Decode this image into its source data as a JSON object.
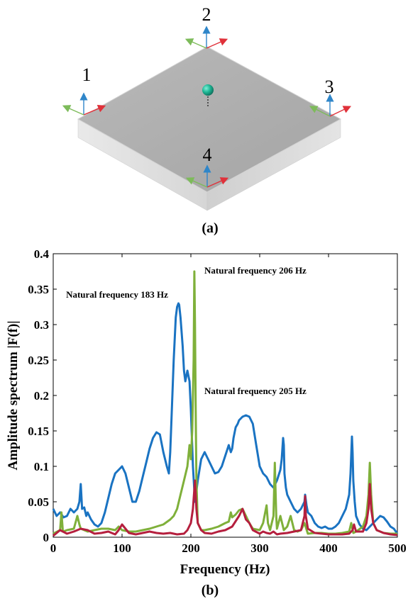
{
  "figure": {
    "panel_a_label": "(a)",
    "panel_b_label": "(b)",
    "sensor_labels": [
      "1",
      "2",
      "3",
      "4"
    ]
  },
  "chart_data": {
    "type": "line",
    "xlabel": "Frequency (Hz)",
    "ylabel": "Amplitude spectrum |F(f)|",
    "xlim": [
      0,
      500
    ],
    "ylim": [
      0,
      0.4
    ],
    "xticks": [
      0,
      100,
      200,
      300,
      400,
      500
    ],
    "yticks": [
      0,
      0.05,
      0.1,
      0.15,
      0.2,
      0.25,
      0.3,
      0.35,
      0.4
    ],
    "ytick_labels": [
      "0",
      "0.05",
      "0.1",
      "0.15",
      "0.2",
      "0.25",
      "0.3",
      "0.35",
      "0.4"
    ],
    "grid": false,
    "annotations": [
      {
        "text": "Natural frequency 183 Hz",
        "x": 183,
        "y": 0.33
      },
      {
        "text": "Natural frequency 206 Hz",
        "x": 206,
        "y": 0.375
      },
      {
        "text": "Natural frequency 205 Hz",
        "x": 205,
        "y": 0.205
      }
    ],
    "series": [
      {
        "color": "#1a73c2",
        "x": [
          0,
          5,
          10,
          15,
          20,
          25,
          30,
          35,
          38,
          40,
          42,
          45,
          48,
          50,
          55,
          60,
          65,
          70,
          75,
          80,
          85,
          90,
          95,
          100,
          105,
          110,
          115,
          120,
          125,
          130,
          135,
          140,
          145,
          150,
          155,
          160,
          165,
          168,
          170,
          172,
          175,
          178,
          180,
          182,
          183,
          185,
          188,
          190,
          192,
          195,
          198,
          200,
          203,
          206,
          210,
          215,
          220,
          225,
          230,
          235,
          240,
          245,
          250,
          255,
          258,
          260,
          262,
          265,
          268,
          270,
          275,
          280,
          285,
          290,
          295,
          300,
          305,
          310,
          315,
          320,
          325,
          330,
          332,
          334,
          335,
          336,
          338,
          340,
          345,
          350,
          355,
          360,
          365,
          366,
          368,
          370,
          375,
          380,
          385,
          390,
          395,
          400,
          405,
          410,
          415,
          420,
          425,
          430,
          432,
          434,
          435,
          436,
          438,
          440,
          445,
          450,
          455,
          460,
          465,
          470,
          475,
          480,
          485,
          490,
          495,
          500
        ],
        "y": [
          0.04,
          0.03,
          0.035,
          0.028,
          0.03,
          0.04,
          0.035,
          0.04,
          0.05,
          0.075,
          0.04,
          0.042,
          0.03,
          0.035,
          0.025,
          0.018,
          0.015,
          0.02,
          0.035,
          0.055,
          0.075,
          0.09,
          0.095,
          0.1,
          0.09,
          0.07,
          0.05,
          0.05,
          0.065,
          0.085,
          0.105,
          0.125,
          0.14,
          0.148,
          0.145,
          0.12,
          0.1,
          0.09,
          0.12,
          0.17,
          0.25,
          0.31,
          0.325,
          0.33,
          0.328,
          0.31,
          0.27,
          0.235,
          0.22,
          0.235,
          0.22,
          0.18,
          0.1,
          0.05,
          0.08,
          0.11,
          0.12,
          0.11,
          0.1,
          0.09,
          0.092,
          0.1,
          0.115,
          0.13,
          0.12,
          0.125,
          0.14,
          0.155,
          0.16,
          0.165,
          0.17,
          0.172,
          0.17,
          0.16,
          0.13,
          0.1,
          0.09,
          0.085,
          0.075,
          0.07,
          0.08,
          0.095,
          0.11,
          0.14,
          0.13,
          0.09,
          0.07,
          0.06,
          0.05,
          0.04,
          0.035,
          0.04,
          0.05,
          0.06,
          0.045,
          0.035,
          0.03,
          0.02,
          0.015,
          0.013,
          0.015,
          0.012,
          0.012,
          0.015,
          0.02,
          0.03,
          0.04,
          0.06,
          0.09,
          0.142,
          0.12,
          0.08,
          0.05,
          0.03,
          0.018,
          0.012,
          0.01,
          0.015,
          0.02,
          0.025,
          0.03,
          0.028,
          0.022,
          0.015,
          0.012,
          0.005
        ]
      },
      {
        "color": "#b51f3e",
        "x": [
          0,
          10,
          20,
          30,
          40,
          50,
          60,
          70,
          80,
          90,
          95,
          100,
          110,
          120,
          125,
          130,
          140,
          150,
          160,
          170,
          180,
          190,
          195,
          200,
          203,
          206,
          208,
          210,
          215,
          220,
          230,
          240,
          250,
          260,
          270,
          275,
          280,
          285,
          290,
          300,
          305,
          310,
          315,
          320,
          325,
          330,
          340,
          350,
          360,
          365,
          366,
          367,
          370,
          380,
          390,
          400,
          410,
          420,
          430,
          435,
          437,
          440,
          450,
          455,
          458,
          460,
          462,
          465,
          470,
          480,
          490,
          500
        ],
        "y": [
          0.002,
          0.01,
          0.005,
          0.008,
          0.012,
          0.01,
          0.005,
          0.006,
          0.008,
          0.004,
          0.01,
          0.018,
          0.006,
          0.004,
          0.005,
          0.006,
          0.008,
          0.006,
          0.005,
          0.006,
          0.004,
          0.005,
          0.01,
          0.02,
          0.04,
          0.08,
          0.04,
          0.02,
          0.01,
          0.006,
          0.005,
          0.008,
          0.01,
          0.015,
          0.03,
          0.04,
          0.025,
          0.02,
          0.01,
          0.005,
          0.008,
          0.006,
          0.005,
          0.008,
          0.004,
          0.005,
          0.006,
          0.008,
          0.01,
          0.03,
          0.058,
          0.03,
          0.012,
          0.006,
          0.005,
          0.004,
          0.004,
          0.004,
          0.005,
          0.01,
          0.018,
          0.008,
          0.008,
          0.02,
          0.04,
          0.075,
          0.04,
          0.02,
          0.01,
          0.006,
          0.004,
          0.003
        ]
      },
      {
        "color": "#7fb03a",
        "x": [
          0,
          10,
          12,
          14,
          20,
          30,
          35,
          38,
          40,
          45,
          50,
          60,
          70,
          80,
          90,
          95,
          100,
          110,
          120,
          130,
          140,
          150,
          160,
          170,
          175,
          180,
          185,
          190,
          195,
          198,
          200,
          202,
          204,
          205,
          206,
          207,
          208,
          210,
          215,
          220,
          230,
          240,
          250,
          255,
          258,
          260,
          265,
          270,
          275,
          280,
          285,
          290,
          300,
          305,
          310,
          312,
          315,
          320,
          322,
          324,
          325,
          330,
          335,
          340,
          345,
          350,
          355,
          360,
          365,
          370,
          380,
          390,
          400,
          410,
          420,
          430,
          433,
          436,
          440,
          450,
          455,
          458,
          460,
          462,
          465,
          470,
          480,
          490,
          500
        ],
        "y": [
          0.005,
          0.01,
          0.035,
          0.008,
          0.01,
          0.012,
          0.03,
          0.018,
          0.012,
          0.01,
          0.008,
          0.01,
          0.012,
          0.012,
          0.01,
          0.015,
          0.01,
          0.008,
          0.008,
          0.01,
          0.012,
          0.015,
          0.018,
          0.025,
          0.03,
          0.04,
          0.06,
          0.08,
          0.1,
          0.13,
          0.11,
          0.15,
          0.25,
          0.375,
          0.3,
          0.18,
          0.08,
          0.02,
          0.01,
          0.01,
          0.012,
          0.015,
          0.02,
          0.022,
          0.035,
          0.028,
          0.032,
          0.038,
          0.04,
          0.03,
          0.02,
          0.012,
          0.01,
          0.02,
          0.045,
          0.02,
          0.01,
          0.03,
          0.105,
          0.03,
          0.012,
          0.03,
          0.01,
          0.015,
          0.03,
          0.01,
          0.008,
          0.01,
          0.02,
          0.005,
          0.006,
          0.006,
          0.005,
          0.005,
          0.006,
          0.008,
          0.02,
          0.006,
          0.008,
          0.015,
          0.03,
          0.06,
          0.105,
          0.06,
          0.02,
          0.01,
          0.006,
          0.005,
          0.005
        ]
      }
    ]
  }
}
